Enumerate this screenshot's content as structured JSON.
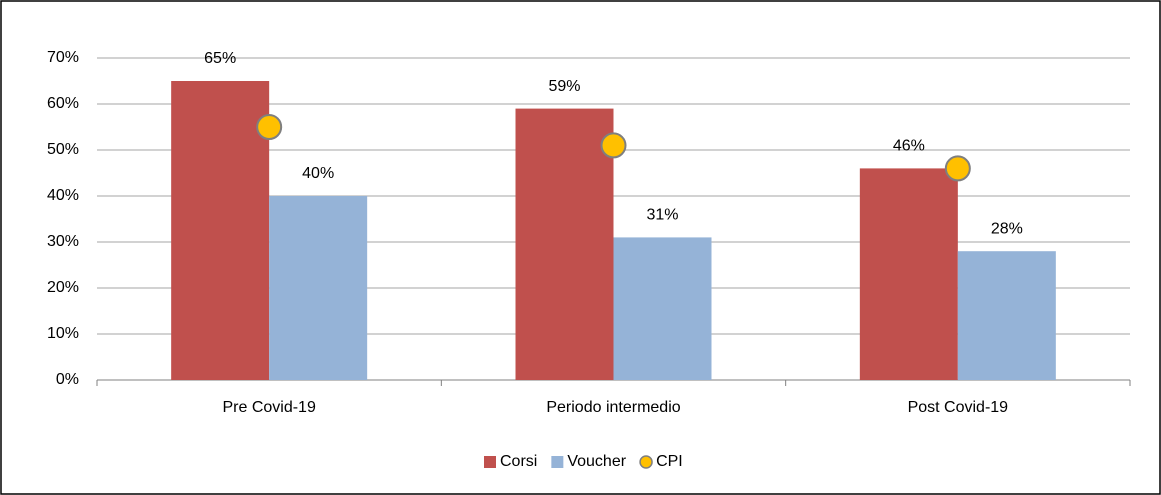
{
  "chart_data": {
    "type": "bar",
    "categories": [
      "Pre Covid-19",
      "Periodo intermedio",
      "Post Covid-19"
    ],
    "series": [
      {
        "name": "Corsi",
        "color": "#c0504d",
        "values": [
          65,
          59,
          46
        ],
        "value_labels": [
          "65%",
          "59%",
          "46%"
        ]
      },
      {
        "name": "Voucher",
        "color": "#95b3d7",
        "values": [
          40,
          31,
          28
        ],
        "value_labels": [
          "40%",
          "31%",
          "28%"
        ]
      },
      {
        "name": "CPI",
        "type": "scatter",
        "color": "#ffc000",
        "values": [
          55,
          51,
          46
        ]
      }
    ],
    "ylim": [
      0,
      70
    ],
    "yticks": [
      {
        "value": 0,
        "label": "0%"
      },
      {
        "value": 10,
        "label": "10%"
      },
      {
        "value": 20,
        "label": "20%"
      },
      {
        "value": 30,
        "label": "30%"
      },
      {
        "value": 40,
        "label": "40%"
      },
      {
        "value": 50,
        "label": "50%"
      },
      {
        "value": 60,
        "label": "60%"
      },
      {
        "value": 70,
        "label": "70%"
      }
    ],
    "grid": true,
    "legend": "bottom"
  }
}
